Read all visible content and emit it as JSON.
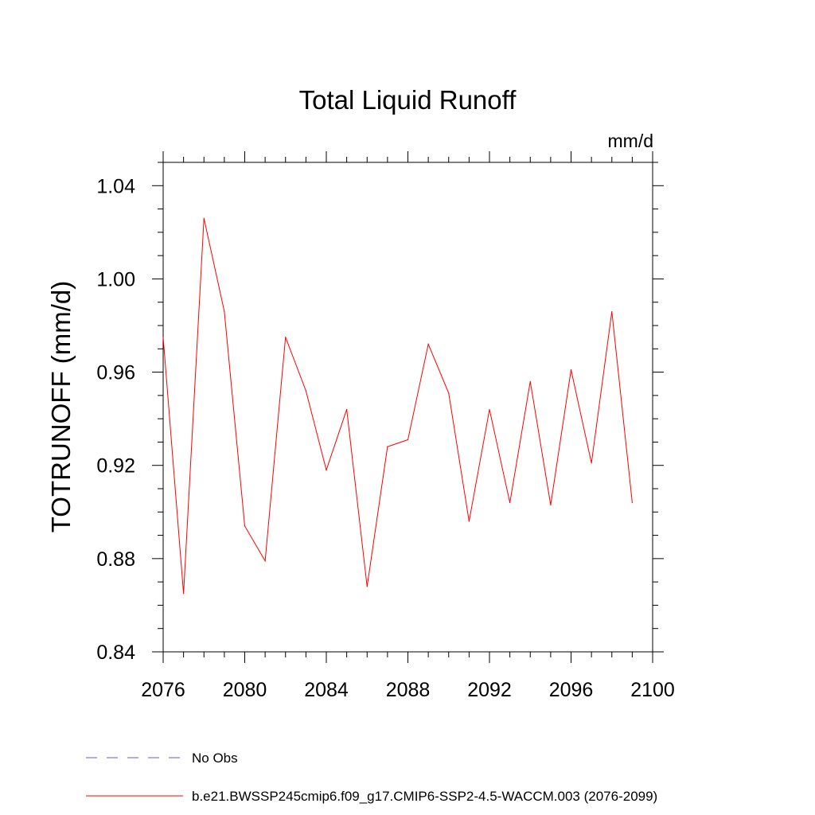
{
  "chart_data": {
    "type": "line",
    "title": "Total Liquid Runoff",
    "units": "mm/d",
    "ylabel": "TOTRUNOFF  (mm/d)",
    "xlabel": "",
    "xlim": [
      2076,
      2100
    ],
    "ylim": [
      0.84,
      1.05
    ],
    "x_ticks": [
      2076,
      2080,
      2084,
      2088,
      2092,
      2096,
      2100
    ],
    "x_tick_labels": [
      "2076",
      "2080",
      "2084",
      "2088",
      "2092",
      "2096",
      "2100"
    ],
    "y_ticks": [
      0.84,
      0.88,
      0.92,
      0.96,
      1.0,
      1.04
    ],
    "y_tick_labels": [
      "0.84",
      "0.88",
      "0.92",
      "0.96",
      "1.00",
      "1.04"
    ],
    "grid": false,
    "legend_position": "bottom",
    "series": [
      {
        "name": "b.e21.BWSSP245cmip6.f09_g17.CMIP6-SSP2-4.5-WACCM.003 (2076-2099)",
        "color": "#ff0000",
        "dash": "solid",
        "x": [
          2076,
          2077,
          2078,
          2079,
          2080,
          2081,
          2082,
          2083,
          2084,
          2085,
          2086,
          2087,
          2088,
          2089,
          2090,
          2091,
          2092,
          2093,
          2094,
          2095,
          2096,
          2097,
          2098,
          2099
        ],
        "values": [
          0.975,
          0.865,
          1.026,
          0.986,
          0.894,
          0.879,
          0.975,
          0.952,
          0.918,
          0.944,
          0.868,
          0.928,
          0.931,
          0.972,
          0.951,
          0.896,
          0.944,
          0.904,
          0.956,
          0.903,
          0.961,
          0.921,
          0.986,
          0.904
        ]
      }
    ],
    "legend": [
      {
        "label": "No Obs",
        "color": "#6a5acd",
        "dash": "dashed"
      },
      {
        "label": "b.e21.BWSSP245cmip6.f09_g17.CMIP6-SSP2-4.5-WACCM.003 (2076-2099)",
        "color": "#ff0000",
        "dash": "solid"
      }
    ]
  }
}
